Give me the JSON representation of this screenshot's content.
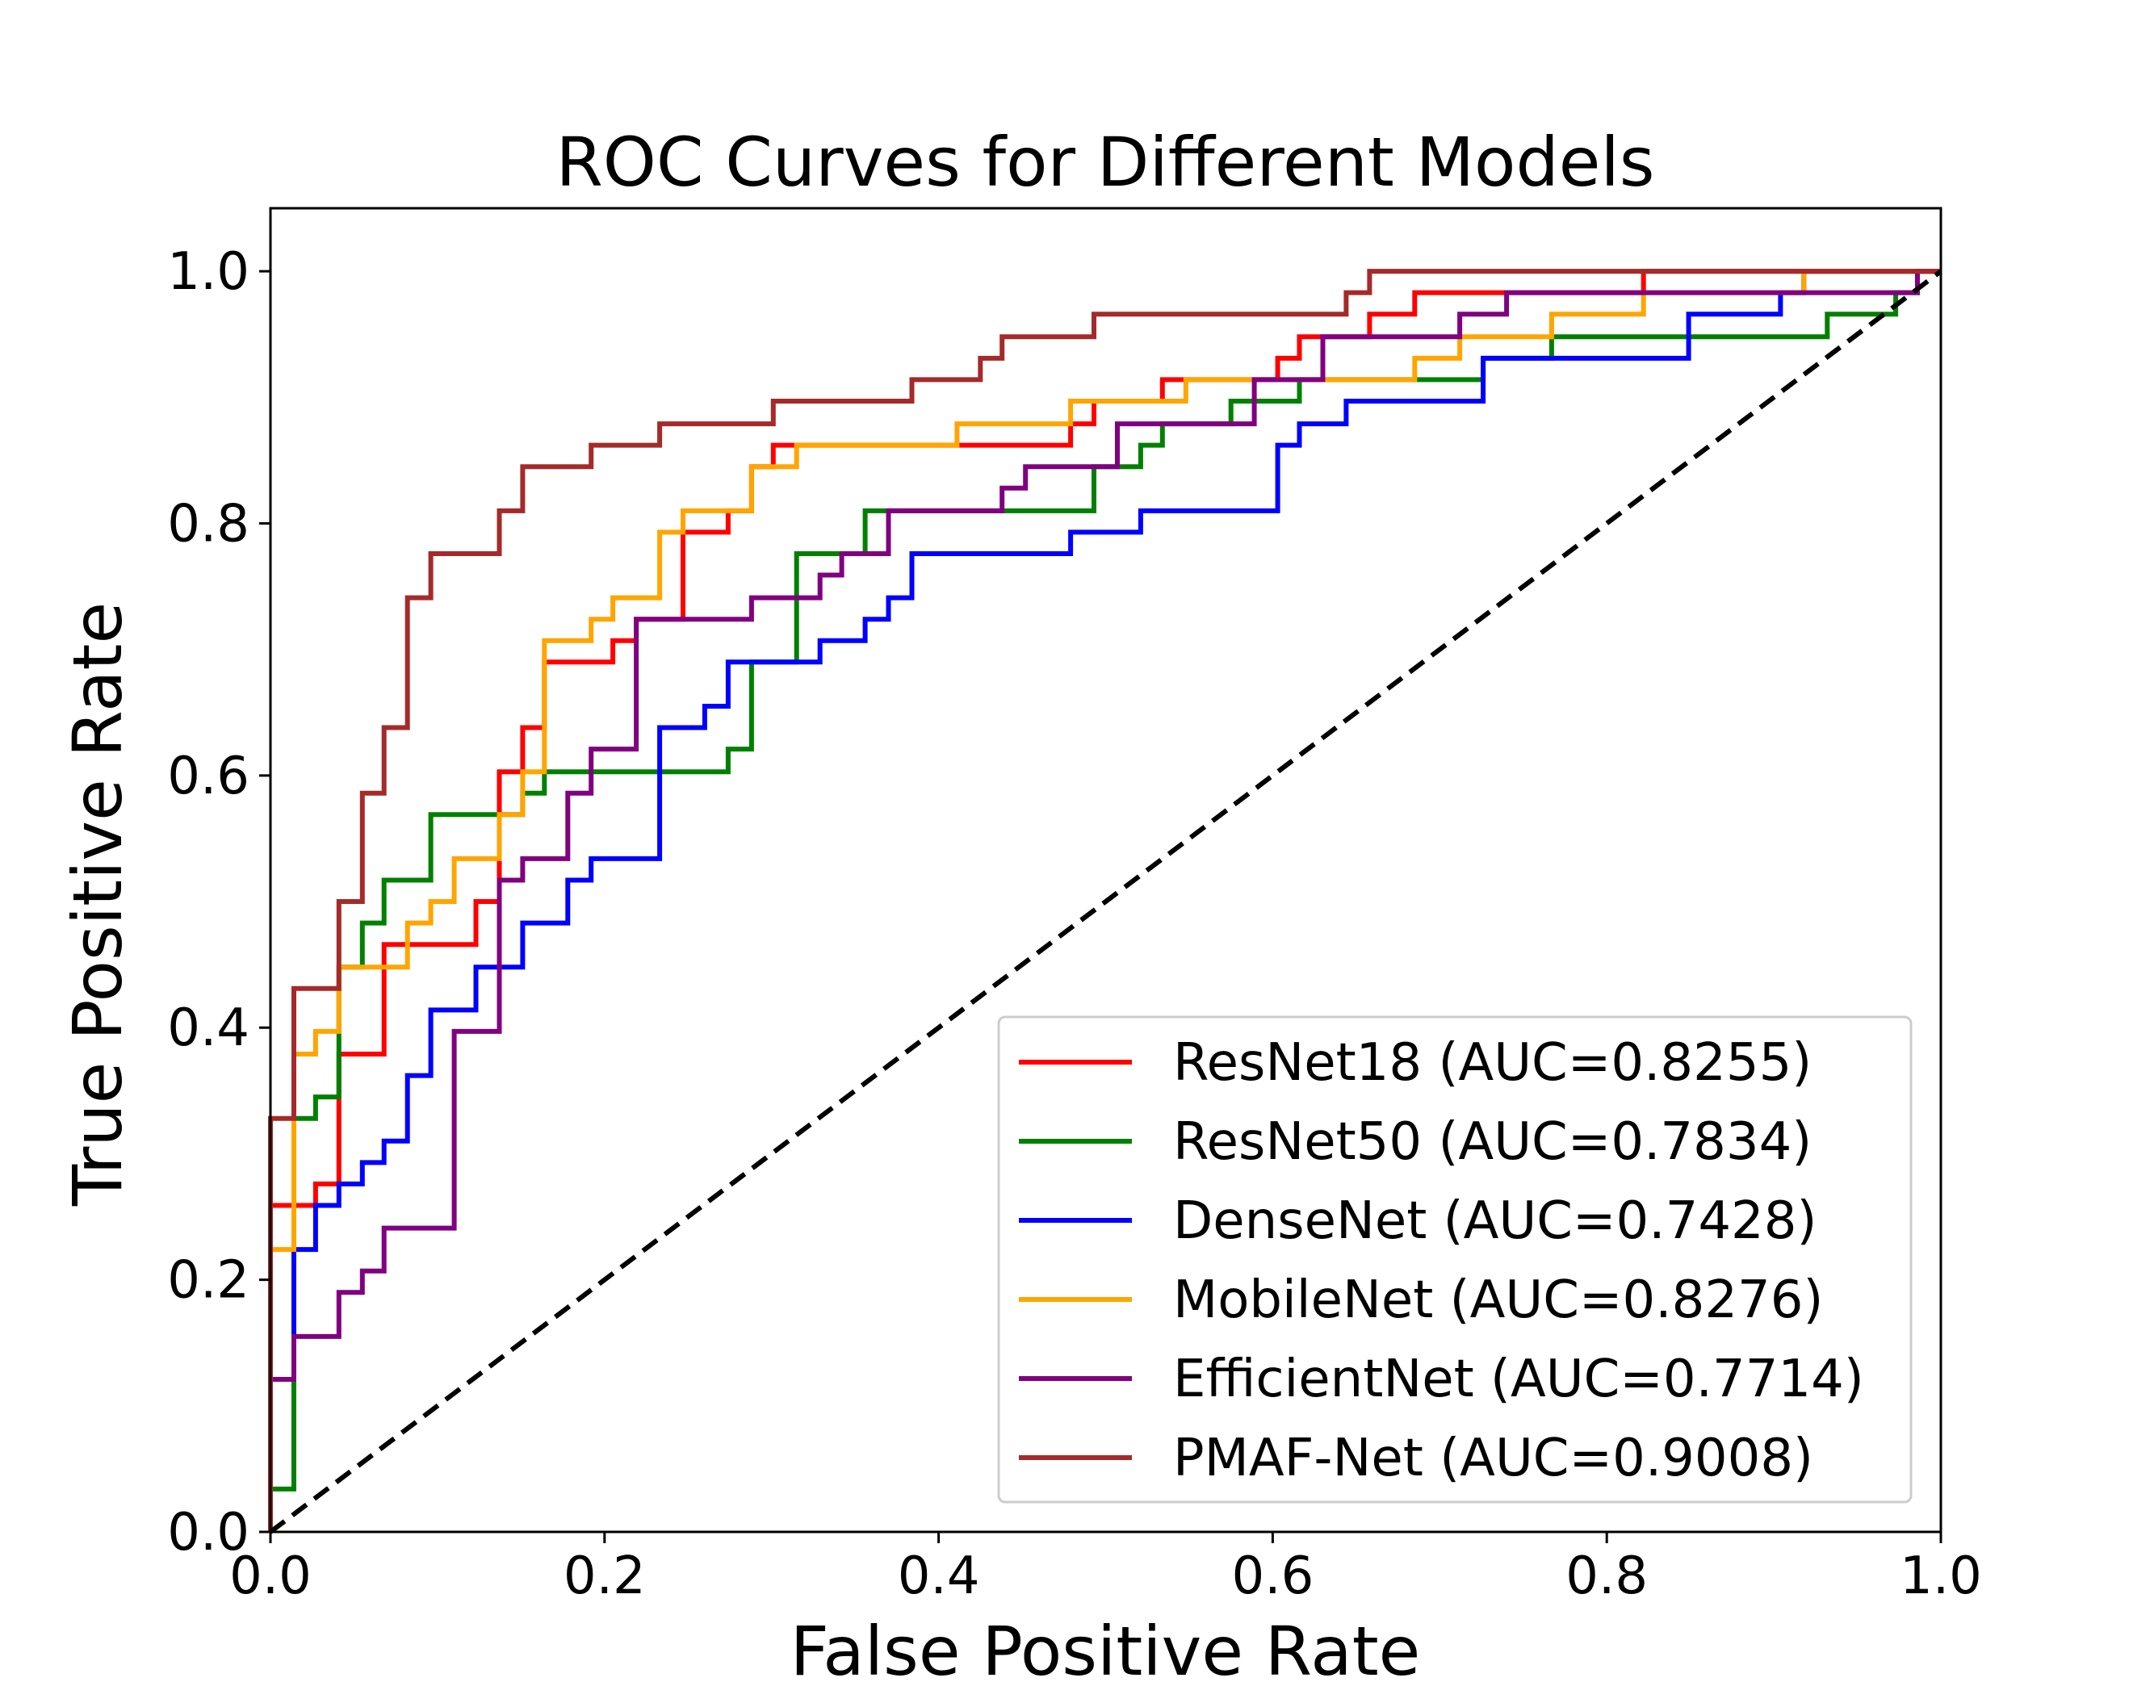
{
  "chart_data": {
    "type": "line",
    "title": "ROC Curves for Different Models",
    "xlabel": "False Positive Rate",
    "ylabel": "True Positive Rate",
    "xlim": [
      0,
      1
    ],
    "ylim": [
      0,
      1.05
    ],
    "xticks": [
      "0.0",
      "0.2",
      "0.4",
      "0.6",
      "0.8",
      "1.0"
    ],
    "yticks": [
      "0.0",
      "0.2",
      "0.4",
      "0.6",
      "0.8",
      "1.0"
    ],
    "grid": false,
    "legend_position": "lower-right",
    "diagonal_reference": {
      "style": "dashed",
      "color": "#000000",
      "points": [
        [
          0,
          0
        ],
        [
          1,
          1
        ]
      ]
    },
    "series": [
      {
        "name": "ResNet18 (AUC=0.8255)",
        "color": "#ff0000",
        "points": [
          [
            0,
            0
          ],
          [
            0,
            0.259
          ],
          [
            0.027,
            0.259
          ],
          [
            0.027,
            0.276
          ],
          [
            0.041,
            0.276
          ],
          [
            0.041,
            0.379
          ],
          [
            0.068,
            0.379
          ],
          [
            0.068,
            0.466
          ],
          [
            0.082,
            0.466
          ],
          [
            0.082,
            0.466
          ],
          [
            0.123,
            0.466
          ],
          [
            0.123,
            0.5
          ],
          [
            0.137,
            0.5
          ],
          [
            0.137,
            0.603
          ],
          [
            0.151,
            0.603
          ],
          [
            0.151,
            0.638
          ],
          [
            0.164,
            0.638
          ],
          [
            0.164,
            0.69
          ],
          [
            0.205,
            0.69
          ],
          [
            0.205,
            0.707
          ],
          [
            0.219,
            0.707
          ],
          [
            0.219,
            0.724
          ],
          [
            0.247,
            0.724
          ],
          [
            0.247,
            0.793
          ],
          [
            0.274,
            0.793
          ],
          [
            0.274,
            0.81
          ],
          [
            0.288,
            0.81
          ],
          [
            0.288,
            0.845
          ],
          [
            0.301,
            0.845
          ],
          [
            0.301,
            0.862
          ],
          [
            0.411,
            0.862
          ],
          [
            0.411,
            0.862
          ],
          [
            0.479,
            0.862
          ],
          [
            0.479,
            0.879
          ],
          [
            0.493,
            0.879
          ],
          [
            0.493,
            0.897
          ],
          [
            0.534,
            0.897
          ],
          [
            0.534,
            0.914
          ],
          [
            0.603,
            0.914
          ],
          [
            0.603,
            0.931
          ],
          [
            0.616,
            0.931
          ],
          [
            0.616,
            0.948
          ],
          [
            0.658,
            0.948
          ],
          [
            0.658,
            0.966
          ],
          [
            0.685,
            0.966
          ],
          [
            0.685,
            0.983
          ],
          [
            0.822,
            0.983
          ],
          [
            0.822,
            1
          ],
          [
            1,
            1
          ]
        ]
      },
      {
        "name": "ResNet50 (AUC=0.7834)",
        "color": "#008000",
        "points": [
          [
            0,
            0
          ],
          [
            0,
            0.034
          ],
          [
            0.014,
            0.034
          ],
          [
            0.014,
            0.328
          ],
          [
            0.027,
            0.328
          ],
          [
            0.027,
            0.345
          ],
          [
            0.041,
            0.345
          ],
          [
            0.041,
            0.448
          ],
          [
            0.055,
            0.448
          ],
          [
            0.055,
            0.483
          ],
          [
            0.068,
            0.483
          ],
          [
            0.068,
            0.517
          ],
          [
            0.096,
            0.517
          ],
          [
            0.096,
            0.569
          ],
          [
            0.137,
            0.569
          ],
          [
            0.137,
            0.569
          ],
          [
            0.151,
            0.569
          ],
          [
            0.151,
            0.586
          ],
          [
            0.164,
            0.586
          ],
          [
            0.164,
            0.603
          ],
          [
            0.26,
            0.603
          ],
          [
            0.26,
            0.603
          ],
          [
            0.274,
            0.603
          ],
          [
            0.274,
            0.621
          ],
          [
            0.288,
            0.621
          ],
          [
            0.288,
            0.672
          ],
          [
            0.288,
            0.69
          ],
          [
            0.315,
            0.69
          ],
          [
            0.315,
            0.776
          ],
          [
            0.356,
            0.776
          ],
          [
            0.356,
            0.81
          ],
          [
            0.493,
            0.81
          ],
          [
            0.493,
            0.845
          ],
          [
            0.521,
            0.845
          ],
          [
            0.521,
            0.862
          ],
          [
            0.534,
            0.862
          ],
          [
            0.534,
            0.879
          ],
          [
            0.575,
            0.879
          ],
          [
            0.575,
            0.897
          ],
          [
            0.616,
            0.897
          ],
          [
            0.616,
            0.914
          ],
          [
            0.726,
            0.914
          ],
          [
            0.726,
            0.931
          ],
          [
            0.767,
            0.931
          ],
          [
            0.767,
            0.948
          ],
          [
            0.932,
            0.948
          ],
          [
            0.932,
            0.966
          ],
          [
            0.973,
            0.966
          ],
          [
            0.973,
            0.983
          ],
          [
            0.986,
            0.983
          ],
          [
            0.986,
            1
          ],
          [
            1,
            1
          ]
        ]
      },
      {
        "name": "DenseNet (AUC=0.7428)",
        "color": "#0000ff",
        "points": [
          [
            0,
            0
          ],
          [
            0,
            0.121
          ],
          [
            0.014,
            0.121
          ],
          [
            0.014,
            0.224
          ],
          [
            0.027,
            0.224
          ],
          [
            0.027,
            0.259
          ],
          [
            0.041,
            0.259
          ],
          [
            0.041,
            0.276
          ],
          [
            0.055,
            0.276
          ],
          [
            0.055,
            0.293
          ],
          [
            0.068,
            0.293
          ],
          [
            0.068,
            0.31
          ],
          [
            0.082,
            0.31
          ],
          [
            0.082,
            0.362
          ],
          [
            0.096,
            0.362
          ],
          [
            0.096,
            0.414
          ],
          [
            0.123,
            0.414
          ],
          [
            0.123,
            0.448
          ],
          [
            0.151,
            0.448
          ],
          [
            0.151,
            0.483
          ],
          [
            0.178,
            0.483
          ],
          [
            0.178,
            0.517
          ],
          [
            0.192,
            0.517
          ],
          [
            0.192,
            0.534
          ],
          [
            0.233,
            0.534
          ],
          [
            0.233,
            0.638
          ],
          [
            0.26,
            0.638
          ],
          [
            0.26,
            0.655
          ],
          [
            0.274,
            0.655
          ],
          [
            0.274,
            0.69
          ],
          [
            0.329,
            0.69
          ],
          [
            0.329,
            0.707
          ],
          [
            0.356,
            0.707
          ],
          [
            0.356,
            0.724
          ],
          [
            0.37,
            0.724
          ],
          [
            0.37,
            0.741
          ],
          [
            0.384,
            0.741
          ],
          [
            0.384,
            0.776
          ],
          [
            0.479,
            0.776
          ],
          [
            0.479,
            0.793
          ],
          [
            0.521,
            0.793
          ],
          [
            0.521,
            0.81
          ],
          [
            0.603,
            0.81
          ],
          [
            0.603,
            0.862
          ],
          [
            0.616,
            0.862
          ],
          [
            0.616,
            0.879
          ],
          [
            0.644,
            0.879
          ],
          [
            0.644,
            0.897
          ],
          [
            0.726,
            0.897
          ],
          [
            0.726,
            0.931
          ],
          [
            0.849,
            0.931
          ],
          [
            0.849,
            0.966
          ],
          [
            0.904,
            0.966
          ],
          [
            0.904,
            0.983
          ],
          [
            0.918,
            0.983
          ],
          [
            0.918,
            1
          ],
          [
            1,
            1
          ]
        ]
      },
      {
        "name": "MobileNet (AUC=0.8276)",
        "color": "#ffa500",
        "points": [
          [
            0,
            0
          ],
          [
            0,
            0.224
          ],
          [
            0.014,
            0.224
          ],
          [
            0.014,
            0.379
          ],
          [
            0.027,
            0.379
          ],
          [
            0.027,
            0.397
          ],
          [
            0.041,
            0.397
          ],
          [
            0.041,
            0.448
          ],
          [
            0.082,
            0.448
          ],
          [
            0.082,
            0.483
          ],
          [
            0.096,
            0.483
          ],
          [
            0.096,
            0.5
          ],
          [
            0.11,
            0.5
          ],
          [
            0.11,
            0.534
          ],
          [
            0.137,
            0.534
          ],
          [
            0.137,
            0.569
          ],
          [
            0.151,
            0.569
          ],
          [
            0.151,
            0.603
          ],
          [
            0.164,
            0.603
          ],
          [
            0.164,
            0.707
          ],
          [
            0.192,
            0.707
          ],
          [
            0.192,
            0.724
          ],
          [
            0.205,
            0.724
          ],
          [
            0.205,
            0.741
          ],
          [
            0.233,
            0.741
          ],
          [
            0.233,
            0.793
          ],
          [
            0.247,
            0.793
          ],
          [
            0.247,
            0.81
          ],
          [
            0.288,
            0.81
          ],
          [
            0.288,
            0.845
          ],
          [
            0.315,
            0.845
          ],
          [
            0.315,
            0.862
          ],
          [
            0.411,
            0.862
          ],
          [
            0.411,
            0.879
          ],
          [
            0.479,
            0.879
          ],
          [
            0.479,
            0.897
          ],
          [
            0.548,
            0.897
          ],
          [
            0.548,
            0.914
          ],
          [
            0.685,
            0.914
          ],
          [
            0.685,
            0.931
          ],
          [
            0.712,
            0.931
          ],
          [
            0.712,
            0.948
          ],
          [
            0.767,
            0.948
          ],
          [
            0.767,
            0.966
          ],
          [
            0.822,
            0.966
          ],
          [
            0.822,
            0.983
          ],
          [
            0.918,
            0.983
          ],
          [
            0.918,
            1
          ],
          [
            1,
            1
          ]
        ]
      },
      {
        "name": "EfficientNet (AUC=0.7714)",
        "color": "#800080",
        "points": [
          [
            0,
            0
          ],
          [
            0,
            0.121
          ],
          [
            0.014,
            0.121
          ],
          [
            0.014,
            0.155
          ],
          [
            0.041,
            0.155
          ],
          [
            0.041,
            0.19
          ],
          [
            0.055,
            0.19
          ],
          [
            0.055,
            0.207
          ],
          [
            0.068,
            0.207
          ],
          [
            0.068,
            0.241
          ],
          [
            0.11,
            0.241
          ],
          [
            0.11,
            0.397
          ],
          [
            0.137,
            0.397
          ],
          [
            0.137,
            0.517
          ],
          [
            0.151,
            0.517
          ],
          [
            0.151,
            0.534
          ],
          [
            0.178,
            0.534
          ],
          [
            0.178,
            0.586
          ],
          [
            0.192,
            0.586
          ],
          [
            0.192,
            0.621
          ],
          [
            0.219,
            0.621
          ],
          [
            0.219,
            0.724
          ],
          [
            0.288,
            0.724
          ],
          [
            0.288,
            0.741
          ],
          [
            0.329,
            0.741
          ],
          [
            0.329,
            0.759
          ],
          [
            0.342,
            0.759
          ],
          [
            0.342,
            0.776
          ],
          [
            0.37,
            0.776
          ],
          [
            0.37,
            0.81
          ],
          [
            0.438,
            0.81
          ],
          [
            0.438,
            0.828
          ],
          [
            0.452,
            0.828
          ],
          [
            0.452,
            0.845
          ],
          [
            0.507,
            0.845
          ],
          [
            0.507,
            0.879
          ],
          [
            0.589,
            0.879
          ],
          [
            0.589,
            0.914
          ],
          [
            0.63,
            0.914
          ],
          [
            0.63,
            0.948
          ],
          [
            0.712,
            0.948
          ],
          [
            0.712,
            0.966
          ],
          [
            0.74,
            0.966
          ],
          [
            0.74,
            0.983
          ],
          [
            0.986,
            0.983
          ],
          [
            0.986,
            1
          ],
          [
            1,
            1
          ]
        ]
      },
      {
        "name": "PMAF-Net (AUC=0.9008)",
        "color": "#a52a2a",
        "points": [
          [
            0,
            0
          ],
          [
            0,
            0.328
          ],
          [
            0.014,
            0.328
          ],
          [
            0.014,
            0.431
          ],
          [
            0.041,
            0.431
          ],
          [
            0.041,
            0.5
          ],
          [
            0.055,
            0.5
          ],
          [
            0.055,
            0.586
          ],
          [
            0.068,
            0.586
          ],
          [
            0.068,
            0.638
          ],
          [
            0.082,
            0.638
          ],
          [
            0.082,
            0.741
          ],
          [
            0.096,
            0.741
          ],
          [
            0.096,
            0.776
          ],
          [
            0.137,
            0.776
          ],
          [
            0.137,
            0.81
          ],
          [
            0.151,
            0.81
          ],
          [
            0.151,
            0.845
          ],
          [
            0.192,
            0.845
          ],
          [
            0.192,
            0.862
          ],
          [
            0.233,
            0.862
          ],
          [
            0.233,
            0.879
          ],
          [
            0.301,
            0.879
          ],
          [
            0.301,
            0.897
          ],
          [
            0.384,
            0.897
          ],
          [
            0.384,
            0.914
          ],
          [
            0.425,
            0.914
          ],
          [
            0.425,
            0.931
          ],
          [
            0.438,
            0.931
          ],
          [
            0.438,
            0.948
          ],
          [
            0.493,
            0.948
          ],
          [
            0.493,
            0.966
          ],
          [
            0.644,
            0.966
          ],
          [
            0.644,
            0.983
          ],
          [
            0.658,
            0.983
          ],
          [
            0.658,
            1
          ],
          [
            1,
            1
          ]
        ]
      }
    ]
  }
}
